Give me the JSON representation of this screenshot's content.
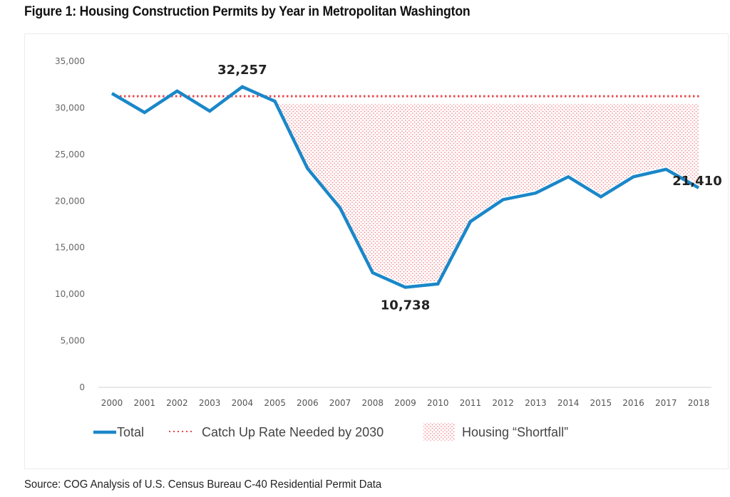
{
  "title": "Figure 1: Housing Construction Permits by Year in Metropolitan Washington",
  "source": "Source: COG Analysis of U.S. Census Bureau C-40 Residential Permit Data",
  "colors": {
    "total": "#1a87c9",
    "catch_up": "#e8474c",
    "shortfall": "#ef8a8e",
    "axis": "#d9d9d9"
  },
  "chart_data": {
    "type": "line",
    "title": "Figure 1: Housing Construction Permits by Year in Metropolitan Washington",
    "xlabel": "",
    "ylabel": "",
    "x": [
      "2000",
      "2001",
      "2002",
      "2003",
      "2004",
      "2005",
      "2006",
      "2007",
      "2008",
      "2009",
      "2010",
      "2011",
      "2012",
      "2013",
      "2014",
      "2015",
      "2016",
      "2017",
      "2018"
    ],
    "ylim": [
      0,
      35000
    ],
    "yticks": [
      0,
      5000,
      10000,
      15000,
      20000,
      25000,
      30000,
      35000
    ],
    "ytick_labels": [
      "0",
      "5,000",
      "10,000",
      "15,000",
      "20,000",
      "25,000",
      "30,000",
      "35,000"
    ],
    "grid": false,
    "legend_position": "bottom",
    "series": [
      {
        "name": "Total",
        "style": "solid",
        "values": [
          31550,
          29500,
          31800,
          29650,
          32257,
          30700,
          23500,
          19250,
          12300,
          10738,
          11100,
          17800,
          20150,
          20850,
          22600,
          20450,
          22600,
          23400,
          21410
        ]
      },
      {
        "name": "Catch Up Rate Needed by 2030",
        "style": "dotted",
        "x_range": [
          "2000",
          "2018"
        ],
        "value": 31250
      },
      {
        "name": "Housing “Shortfall”",
        "style": "dotted-area",
        "x_range": [
          "2005",
          "2018"
        ],
        "upper": 30400,
        "lower_series": "Total"
      }
    ],
    "annotations": [
      {
        "x": "2004",
        "value": 32257,
        "text": "32,257",
        "position": "above"
      },
      {
        "x": "2009",
        "value": 10738,
        "text": "10,738",
        "position": "below"
      },
      {
        "x": "2018",
        "value": 21410,
        "text": "21,410",
        "position": "below"
      }
    ],
    "legend": [
      {
        "label": "Total",
        "marker": "line"
      },
      {
        "label": "Catch Up Rate Needed by 2030",
        "marker": "dotted-line"
      },
      {
        "label": "Housing “Shortfall”",
        "marker": "dotted-area"
      }
    ]
  }
}
